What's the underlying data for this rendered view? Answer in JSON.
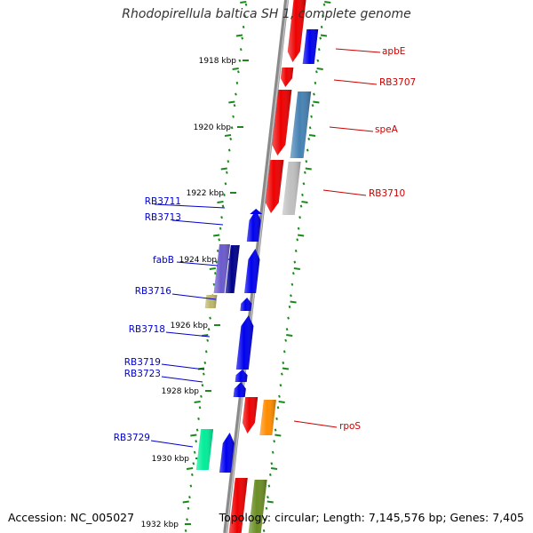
{
  "title": "Rhodopirellula baltica SH 1, complete genome",
  "footer": {
    "accession": "Accession: NC_005027",
    "topology": "Topology: circular; Length: 7,145,576 bp; Genes: 7,405"
  },
  "colors": {
    "backbone": "#8a8a8a",
    "tick": "#1a8a1a",
    "label_blue": "#0000cc",
    "label_red": "#cc0000",
    "blue": "#0000ee",
    "red": "#ee0000",
    "purple": "#6a5acd",
    "navy": "#00008b",
    "khaki": "#bdb76b",
    "steelblue": "#4682b4",
    "lightgray": "#c0c0c0",
    "orange": "#ff8c00",
    "aquamarine": "#00ee99",
    "olive": "#6b8e23"
  },
  "scale_labels": [
    {
      "text": "1918 kbp",
      "kbp": 1918
    },
    {
      "text": "1920 kbp",
      "kbp": 1920
    },
    {
      "text": "1922 kbp",
      "kbp": 1922
    },
    {
      "text": "1924 kbp",
      "kbp": 1924
    },
    {
      "text": "1926 kbp",
      "kbp": 1926
    },
    {
      "text": "1928 kbp",
      "kbp": 1928
    },
    {
      "text": "1930 kbp",
      "kbp": 1930
    },
    {
      "text": "1932 kbp",
      "kbp": 1932
    }
  ],
  "left_labels": [
    {
      "text": "RB3711"
    },
    {
      "text": "RB3713"
    },
    {
      "text": "fabB"
    },
    {
      "text": "RB3716"
    },
    {
      "text": "RB3718"
    },
    {
      "text": "RB3719"
    },
    {
      "text": "RB3723"
    },
    {
      "text": "RB3729"
    }
  ],
  "right_labels": [
    {
      "text": "apbE"
    },
    {
      "text": "RB3707"
    },
    {
      "text": "speA"
    },
    {
      "text": "RB3710"
    },
    {
      "text": "rpoS"
    }
  ]
}
